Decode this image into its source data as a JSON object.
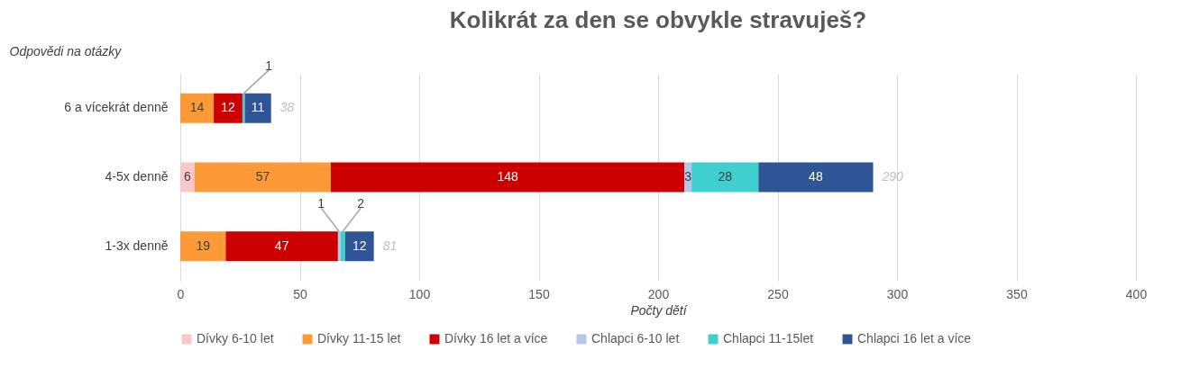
{
  "chart_data": {
    "type": "bar",
    "orientation": "horizontal",
    "stacked": true,
    "title": "Kolikrát za den se obvykle stravuješ?",
    "ylabel": "Odpovědi na otázky",
    "xlabel": "Počty dětí",
    "categories": [
      "6 a vícekrát denně",
      "4-5x denně",
      "1-3x denně"
    ],
    "series": [
      {
        "name": "Dívky 6-10 let",
        "color": "#f8c8c8",
        "values": [
          0,
          6,
          0
        ],
        "value_labels": [
          null,
          "6",
          null
        ]
      },
      {
        "name": "Dívky 11-15 let",
        "color": "#fb9a36",
        "values": [
          14,
          57,
          19
        ],
        "value_labels": [
          "14",
          "57",
          "19"
        ]
      },
      {
        "name": "Dívky 16 let a více",
        "color": "#cc0000",
        "values": [
          12,
          148,
          47
        ],
        "value_labels": [
          "12",
          "148",
          "47"
        ]
      },
      {
        "name": "Chlapci 6-10 let",
        "color": "#b4c7e7",
        "values": [
          0,
          3,
          1
        ],
        "value_labels": [
          null,
          "3",
          "1"
        ]
      },
      {
        "name": "Chlapci 11-15let",
        "color": "#3fcfcf",
        "values": [
          1,
          28,
          2
        ],
        "value_labels": [
          "1",
          "28",
          "2"
        ]
      },
      {
        "name": "Chlapci 16 let a více",
        "color": "#2f5597",
        "values": [
          11,
          48,
          12
        ],
        "value_labels": [
          "11",
          "48",
          "12"
        ]
      }
    ],
    "totals": [
      "38",
      "290",
      "81"
    ],
    "xlim": [
      0,
      400
    ],
    "xticks": [
      0,
      50,
      100,
      150,
      200,
      250,
      300,
      350,
      400
    ],
    "grid": true,
    "legend": "bottom"
  }
}
